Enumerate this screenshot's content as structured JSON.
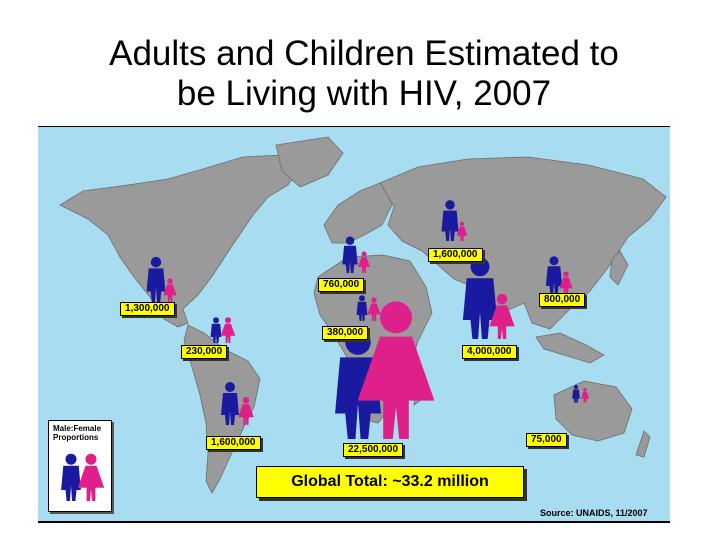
{
  "title_line1": "Adults and Children Estimated to",
  "title_line2": "be Living with HIV, 2007",
  "legend": {
    "line1": "Male:Female",
    "line2": "Proportions"
  },
  "total": "Global Total: ~33.2 million",
  "source": "Source: UNAIDS, 11/2007",
  "colors": {
    "ocean": "#a8dcf0",
    "land": "#9a9a9a",
    "male": "#1a1aa0",
    "female": "#e0208a",
    "label": "#ffff00"
  },
  "regions": [
    {
      "id": "north-america",
      "value": "1,300,000"
    },
    {
      "id": "caribbean",
      "value": "230,000"
    },
    {
      "id": "latin-america",
      "value": "1,600,000"
    },
    {
      "id": "western-central-europe",
      "value": "760,000"
    },
    {
      "id": "north-africa-middle-east",
      "value": "380,000"
    },
    {
      "id": "sub-saharan-africa",
      "value": "22,500,000"
    },
    {
      "id": "eastern-europe-central-asia",
      "value": "1,600,000"
    },
    {
      "id": "east-asia",
      "value": "800,000"
    },
    {
      "id": "south-southeast-asia",
      "value": "4,000,000"
    },
    {
      "id": "oceania",
      "value": "75,000"
    }
  ]
}
